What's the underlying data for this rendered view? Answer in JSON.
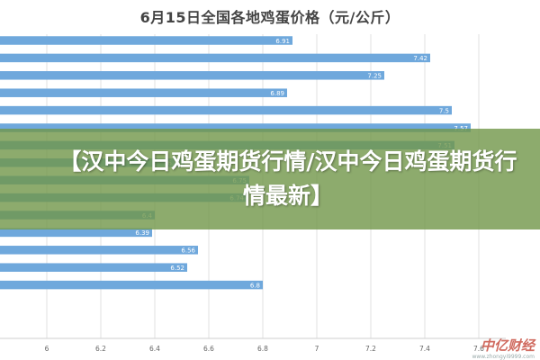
{
  "chart_data": {
    "type": "bar",
    "orientation": "horizontal",
    "title": "6月15日全国各地鸡蛋价格（元/公斤）",
    "xlim": [
      6,
      7.7
    ],
    "xticks": [
      "6",
      "6.2",
      "6.4",
      "6.6",
      "6.8",
      "7",
      "7.2",
      "7.4",
      "7.6"
    ],
    "grid": true,
    "series": [
      {
        "values": [
          6.91,
          7.42,
          7.25,
          6.89,
          7.5,
          7.57,
          7.51,
          6.51,
          6.75,
          6.74,
          6.4,
          6.39,
          6.56,
          6.52,
          6.8
        ]
      }
    ],
    "bar_color": "#6fa8dc"
  },
  "banner": {
    "text": "【汉中今日鸡蛋期货行情/汉中今日鸡蛋期货行情最新】"
  },
  "watermark": {
    "text": "中亿财经",
    "subtext": "www.zhongyi9999.com"
  }
}
